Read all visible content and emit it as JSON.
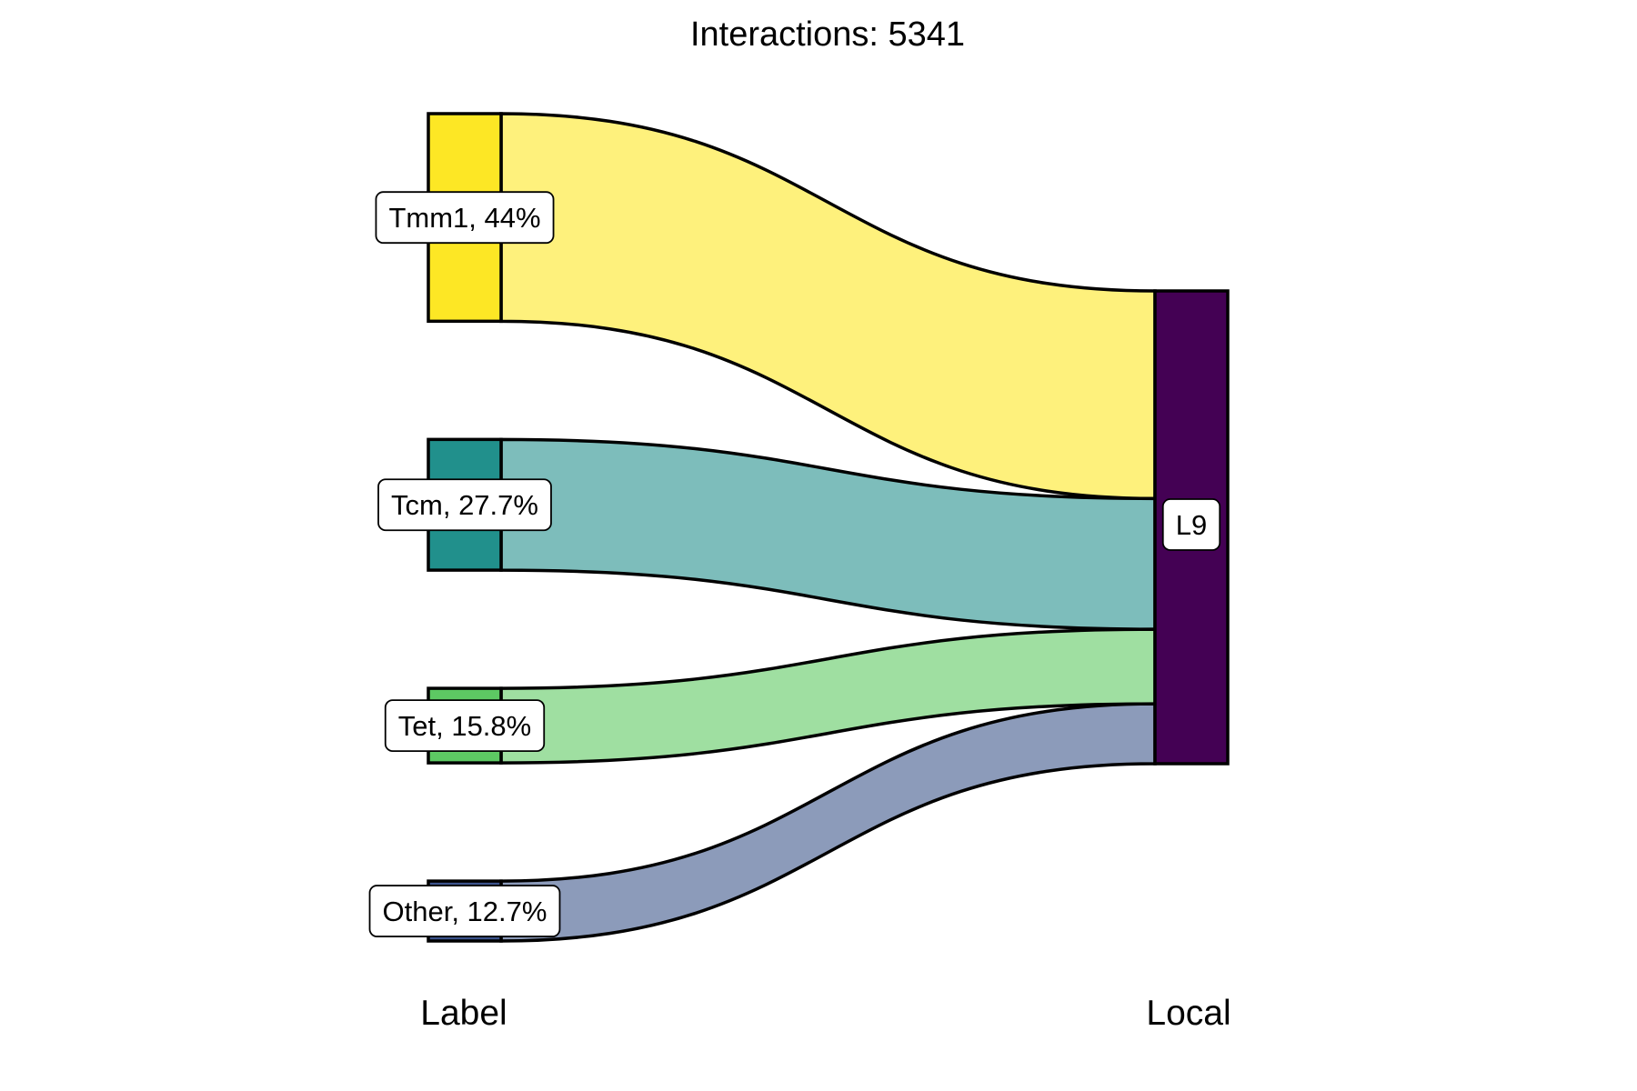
{
  "chart_data": {
    "type": "sankey",
    "title": "Interactions: 5341",
    "axes": [
      "Label",
      "Local"
    ],
    "source_nodes": [
      {
        "name": "Tmm1",
        "percent": 44,
        "label": "Tmm1, 44%",
        "color": "#FDE725",
        "flow_color": "#FEF17C"
      },
      {
        "name": "Tcm",
        "percent": 27.7,
        "label": "Tcm, 27.7%",
        "color": "#21908C",
        "flow_color": "#7DBDBB"
      },
      {
        "name": "Tet",
        "percent": 15.8,
        "label": "Tet, 15.8%",
        "color": "#5DC863",
        "flow_color": "#9FDFA1"
      },
      {
        "name": "Other",
        "percent": 12.7,
        "label": "Other, 12.7%",
        "color": "#3B528B",
        "flow_color": "#8C9BBA"
      }
    ],
    "target_nodes": [
      {
        "name": "L9",
        "percent": 100,
        "label": "L9",
        "color": "#440154"
      }
    ],
    "flows": [
      {
        "from": "Tmm1",
        "to": "L9",
        "percent": 44
      },
      {
        "from": "Tcm",
        "to": "L9",
        "percent": 27.7
      },
      {
        "from": "Tet",
        "to": "L9",
        "percent": 15.8
      },
      {
        "from": "Other",
        "to": "L9",
        "percent": 12.7
      }
    ]
  }
}
